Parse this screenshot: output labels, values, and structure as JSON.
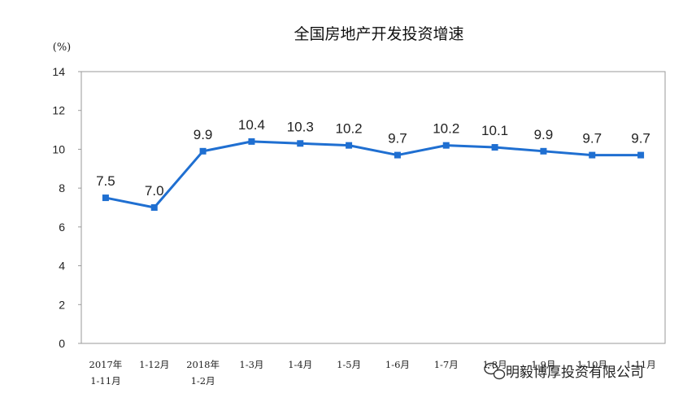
{
  "chart_data": {
    "type": "line",
    "title": "全国房地产开发投资增速",
    "ylabel": "(%)",
    "ylim": [
      0,
      14
    ],
    "yticks": [
      0,
      2,
      4,
      6,
      8,
      10,
      12,
      14
    ],
    "grid": false,
    "categories": [
      [
        "2017年",
        "1-11月"
      ],
      [
        "1-12月"
      ],
      [
        "2018年",
        "1-2月"
      ],
      [
        "1-3月"
      ],
      [
        "1-4月"
      ],
      [
        "1-5月"
      ],
      [
        "1-6月"
      ],
      [
        "1-7月"
      ],
      [
        "1-8月"
      ],
      [
        "1-9月"
      ],
      [
        "1-10月"
      ],
      [
        "1-11月"
      ]
    ],
    "series": [
      {
        "values": [
          7.5,
          7.0,
          9.9,
          10.4,
          10.3,
          10.2,
          9.7,
          10.2,
          10.1,
          9.9,
          9.7,
          9.7
        ],
        "labels": [
          "7.5",
          "7.0",
          "9.9",
          "10.4",
          "10.3",
          "10.2",
          "9.7",
          "10.2",
          "10.1",
          "9.9",
          "9.7",
          "9.7"
        ],
        "color": "#1f6fd1"
      }
    ]
  },
  "watermark": {
    "text": "明毅博厚投资有限公司",
    "icon": "wechat-bubble-icon"
  }
}
